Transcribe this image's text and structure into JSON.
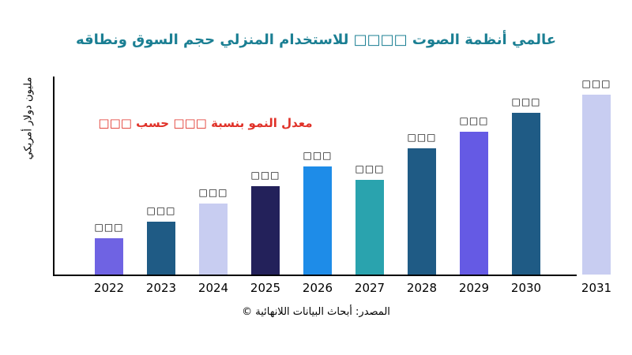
{
  "title": {
    "text": "عالمي أنظمة الصوت □□□□ للاستخدام المنزلي حجم السوق ونطاقه",
    "color": "#1b7f93"
  },
  "annotation": {
    "text": "معدل النمو بنسبة □□□ حسب □□□",
    "color": "#e03128"
  },
  "y_axis_label": "مليون دولار أمريكي",
  "source": {
    "text": "المصدر: أبحاث البيانات اللانهائية ©"
  },
  "chart_data": {
    "type": "bar",
    "title": "عالمي أنظمة الصوت □□□□ للاستخدام المنزلي حجم السوق ونطاقه",
    "ylabel": "مليون دولار أمريكي",
    "xlabel": "",
    "categories": [
      "2022",
      "2023",
      "2024",
      "2025",
      "2026",
      "2027",
      "2028",
      "2029",
      "2030",
      "2031"
    ],
    "values": [
      46,
      67,
      90,
      112,
      137,
      120,
      160,
      181,
      205,
      228
    ],
    "values_note": "Numeric values are not printed on the chart; bar value labels render as placeholder boxes. 'values' are relative bar heights estimated in pixels from the image.",
    "bar_labels": [
      "□□□",
      "□□□",
      "□□□",
      "□□□",
      "□□□",
      "□□□",
      "□□□",
      "□□□",
      "□□□",
      "□□□"
    ],
    "bar_colors": [
      "#6f63e3",
      "#1f5b85",
      "#c8cdf1",
      "#23215a",
      "#1e8ce8",
      "#2aa3ae",
      "#1f5b85",
      "#655ae4",
      "#1f5b85",
      "#c8cdf1"
    ],
    "y_ticks": [],
    "grid": false,
    "legend": false
  }
}
